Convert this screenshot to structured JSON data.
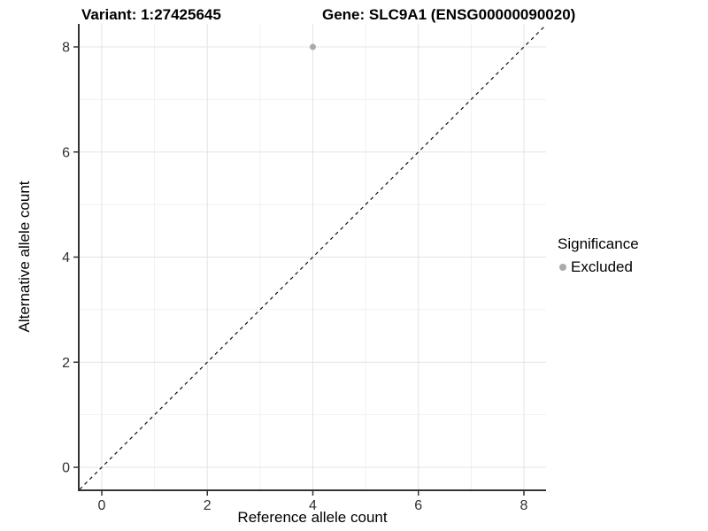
{
  "chart_data": {
    "type": "scatter",
    "title_variant": "Variant: 1:27425645",
    "title_gene": "Gene: SLC9A1 (ENSG00000090020)",
    "xlabel": "Reference allele count",
    "ylabel": "Alternative allele count",
    "xlim": [
      -0.42,
      8.42
    ],
    "ylim": [
      -0.42,
      8.42
    ],
    "x_ticks": [
      0,
      2,
      4,
      6,
      8
    ],
    "y_ticks": [
      0,
      2,
      4,
      6,
      8
    ],
    "x_minor": [
      1,
      3,
      5,
      7
    ],
    "y_minor": [
      1,
      3,
      5,
      7
    ],
    "grid": {
      "major_color": "#e4e4e4",
      "minor_color": "#f1f1f1",
      "on": true
    },
    "axis_color": "#333333",
    "tick_label_color": "#303030",
    "reference_line": {
      "type": "identity",
      "style": "dashed",
      "color": "#111111"
    },
    "series": [
      {
        "name": "Excluded",
        "color": "#aaaaaa",
        "points": [
          {
            "x": 4,
            "y": 8
          }
        ]
      }
    ],
    "legend": {
      "title": "Significance",
      "position": "right",
      "entries": [
        {
          "label": "Excluded",
          "color": "#aaaaaa"
        }
      ]
    }
  }
}
